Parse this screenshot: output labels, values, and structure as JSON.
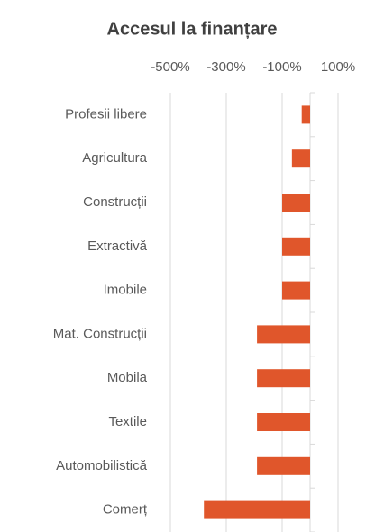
{
  "chart_data": {
    "type": "bar",
    "orientation": "horizontal",
    "title": "Accesul la finanțare",
    "categories": [
      "Profesii libere",
      "Agricultura",
      "Construcții",
      "Extractivă",
      "Imobile",
      "Mat. Construcții",
      "Mobila",
      "Textile",
      "Automobilistică",
      "Comerț"
    ],
    "values": [
      -30,
      -65,
      -100,
      -100,
      -100,
      -190,
      -190,
      -190,
      -190,
      -380
    ],
    "color": "#e0562b",
    "xlim": [
      -500,
      100
    ],
    "xticks": [
      {
        "value": -500,
        "label": "-500%"
      },
      {
        "value": -300,
        "label": "-300%"
      },
      {
        "value": -100,
        "label": "-100%"
      },
      {
        "value": 100,
        "label": "100%"
      }
    ],
    "grid": true
  }
}
